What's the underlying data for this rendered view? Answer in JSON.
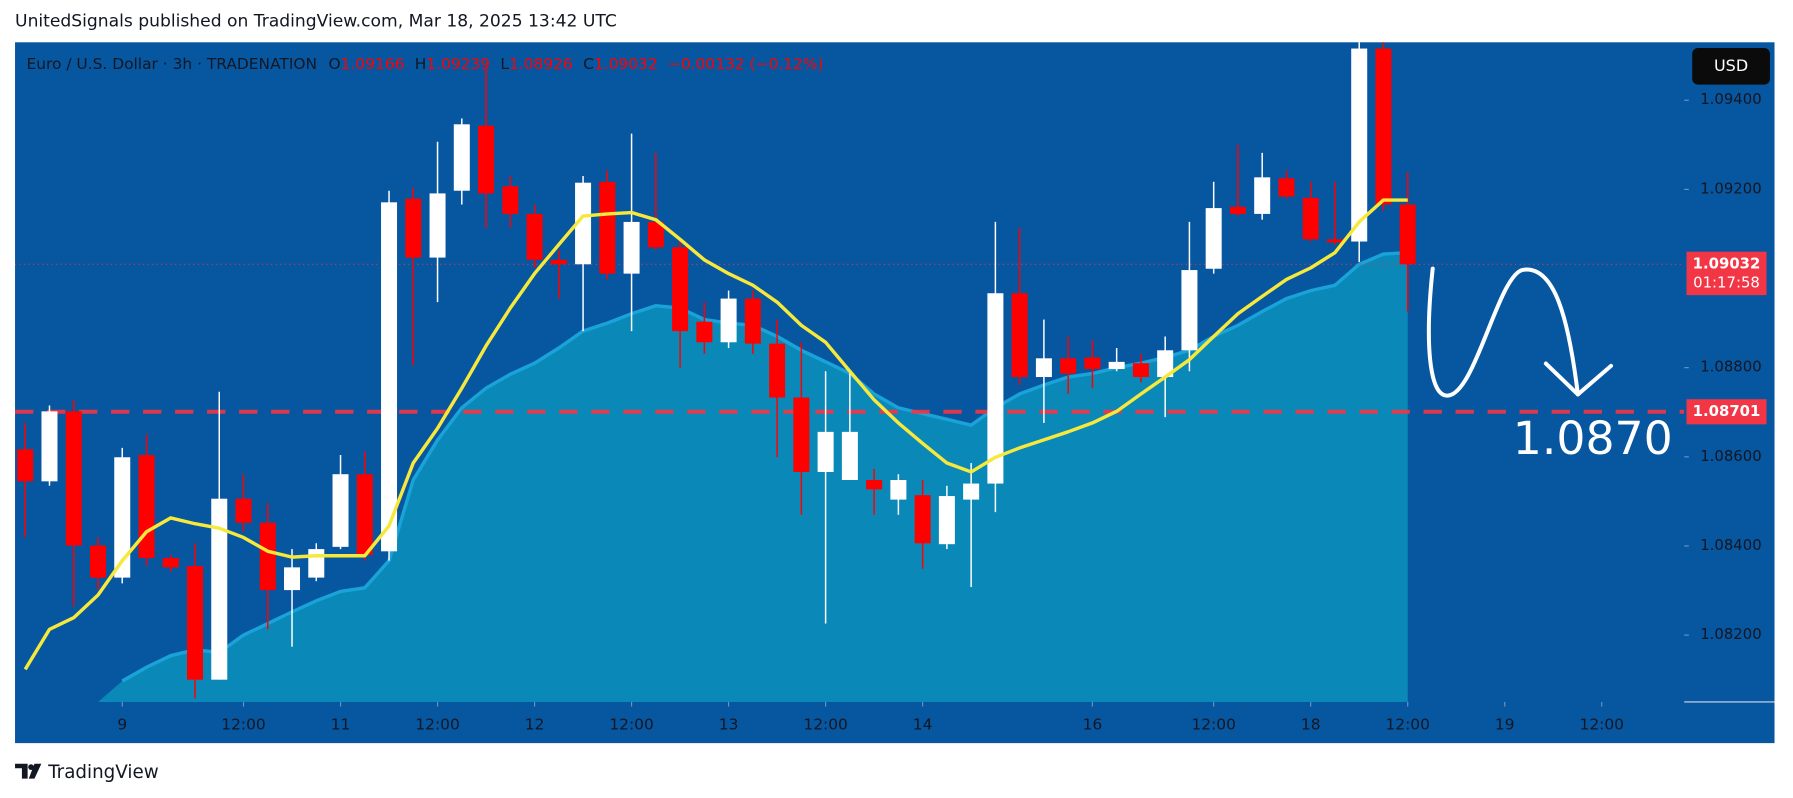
{
  "header": {
    "text": "UnitedSignals published on TradingView.com, Mar 18, 2025 13:42 UTC"
  },
  "footer": {
    "logo": "TradingView"
  },
  "chart_data": {
    "type": "candlestick",
    "legend": {
      "symbol": "Euro / U.S. Dollar · 3h · TRADENATION",
      "open_label": "O",
      "open": "1.09166",
      "high_label": "H",
      "high": "1.09239",
      "low_label": "L",
      "low": "1.08926",
      "close_label": "C",
      "close": "1.09032",
      "change": "−0.00132 (−0.12%)"
    },
    "currency": "USD",
    "xlim": [
      -0.42,
      68.4
    ],
    "xticks": [
      {
        "value": 4,
        "label": "9"
      },
      {
        "value": 9,
        "label": "12:00"
      },
      {
        "value": 13,
        "label": "11"
      },
      {
        "value": 17,
        "label": "12:00"
      },
      {
        "value": 21,
        "label": "12"
      },
      {
        "value": 25,
        "label": "12:00"
      },
      {
        "value": 29,
        "label": "13"
      },
      {
        "value": 33,
        "label": "12:00"
      },
      {
        "value": 37,
        "label": "14"
      },
      {
        "value": 44,
        "label": "16"
      },
      {
        "value": 49,
        "label": "12:00"
      },
      {
        "value": 53,
        "label": "18"
      },
      {
        "value": 57,
        "label": "12:00"
      },
      {
        "value": 61,
        "label": "19"
      },
      {
        "value": 65,
        "label": "12:00"
      }
    ],
    "ylim": [
      1.0805,
      1.0953
    ],
    "yticks": [
      {
        "value": 1.082,
        "label": "1.08200"
      },
      {
        "value": 1.084,
        "label": "1.08400"
      },
      {
        "value": 1.086,
        "label": "1.08600"
      },
      {
        "value": 1.088,
        "label": "1.08800"
      },
      {
        "value": 1.092,
        "label": "1.09200"
      },
      {
        "value": 1.094,
        "label": "1.09400"
      }
    ],
    "up_color": "#ffffff",
    "down_color": "#ff0000",
    "open": [
      1.08617,
      1.08545,
      1.08702,
      1.08401,
      1.08329,
      1.08604,
      1.08373,
      1.08355,
      1.081,
      1.08506,
      1.08452,
      1.08301,
      1.08329,
      1.08398,
      1.08561,
      1.08388,
      1.09179,
      1.09047,
      1.09197,
      1.09343,
      1.09207,
      1.09145,
      1.09042,
      1.09032,
      1.09217,
      1.09011,
      1.09127,
      1.0907,
      1.08903,
      1.08857,
      1.08955,
      1.08854,
      1.08733,
      1.08566,
      1.08548,
      1.08548,
      1.08504,
      1.08514,
      1.08404,
      1.08504,
      1.0854,
      1.08967,
      1.08779,
      1.08821,
      1.08823,
      1.08797,
      1.0881,
      1.08779,
      1.08839,
      1.09022,
      1.09161,
      1.09145,
      1.09225,
      1.09181,
      1.09088,
      1.09083,
      1.09516,
      1.09166
    ],
    "high": [
      1.08676,
      1.08715,
      1.08728,
      1.08419,
      1.0862,
      1.08651,
      1.0838,
      1.08406,
      1.08746,
      1.08561,
      1.08496,
      1.08393,
      1.08406,
      1.08604,
      1.08612,
      1.09197,
      1.09204,
      1.09307,
      1.09359,
      1.09475,
      1.0923,
      1.09166,
      1.09063,
      1.0923,
      1.09243,
      1.09325,
      1.09282,
      1.09088,
      1.08947,
      1.08973,
      1.08973,
      1.08908,
      1.08857,
      1.08792,
      1.08792,
      1.08573,
      1.08561,
      1.08548,
      1.08535,
      1.08586,
      1.09127,
      1.09114,
      1.08908,
      1.0887,
      1.08862,
      1.08844,
      1.08831,
      1.0887,
      1.09127,
      1.09217,
      1.093,
      1.09282,
      1.09243,
      1.09217,
      1.09217,
      1.09534,
      1.09534,
      1.09239
    ],
    "low": [
      1.08419,
      1.08535,
      1.08264,
      1.08303,
      1.08316,
      1.08355,
      1.08342,
      1.08058,
      1.081,
      1.08432,
      1.08213,
      1.08174,
      1.08321,
      1.08393,
      1.08367,
      1.08367,
      1.08805,
      1.08947,
      1.09166,
      1.09114,
      1.09114,
      1.09024,
      1.08955,
      1.08882,
      1.08998,
      1.08882,
      1.09063,
      1.088,
      1.08831,
      1.08844,
      1.08831,
      1.08599,
      1.0847,
      1.08226,
      1.08548,
      1.0847,
      1.0847,
      1.08349,
      1.08393,
      1.08308,
      1.08476,
      1.08761,
      1.08676,
      1.08741,
      1.08754,
      1.08792,
      1.08767,
      1.08689,
      1.08792,
      1.09011,
      1.0914,
      1.09132,
      1.09179,
      1.09083,
      1.09076,
      1.09037,
      1.09153,
      1.08926
    ],
    "close": [
      1.08545,
      1.08702,
      1.08401,
      1.08329,
      1.08599,
      1.08373,
      1.08352,
      1.081,
      1.08506,
      1.08452,
      1.08301,
      1.08352,
      1.08393,
      1.08561,
      1.0838,
      1.09171,
      1.09047,
      1.09191,
      1.09346,
      1.09191,
      1.09145,
      1.09042,
      1.09032,
      1.09215,
      1.09011,
      1.09127,
      1.0907,
      1.08882,
      1.08857,
      1.08955,
      1.08854,
      1.08733,
      1.08566,
      1.08656,
      1.08656,
      1.08527,
      1.08548,
      1.08406,
      1.08512,
      1.0854,
      1.08967,
      1.08779,
      1.08821,
      1.08787,
      1.08797,
      1.08813,
      1.08779,
      1.08839,
      1.09019,
      1.09158,
      1.09145,
      1.09227,
      1.09184,
      1.09088,
      1.09081,
      1.09516,
      1.09166,
      1.09032
    ],
    "ma_line": {
      "color": "#f7e83c",
      "values": [
        1.08123,
        1.08213,
        1.08239,
        1.0829,
        1.08367,
        1.08432,
        1.08463,
        1.0845,
        1.0844,
        1.08419,
        1.08388,
        1.08375,
        1.08378,
        1.08378,
        1.08378,
        1.08445,
        1.08586,
        1.08664,
        1.08754,
        1.08849,
        1.08934,
        1.09011,
        1.09076,
        1.0914,
        1.09145,
        1.09148,
        1.09132,
        1.09088,
        1.09042,
        1.09011,
        1.08985,
        1.08947,
        1.08895,
        1.08857,
        1.08792,
        1.08728,
        1.08676,
        1.0863,
        1.08586,
        1.08566,
        1.08599,
        1.0862,
        1.08638,
        1.08656,
        1.08676,
        1.08702,
        1.08741,
        1.08779,
        1.08818,
        1.0887,
        1.08921,
        1.0896,
        1.08998,
        1.09024,
        1.09058,
        1.09127,
        1.09176,
        1.09176
      ]
    },
    "ma_area": {
      "color": "#0a88b8",
      "edge_color": "#1aa3d9",
      "values": [
        null,
        null,
        null,
        null,
        1.08097,
        1.08128,
        1.08154,
        1.08167,
        1.08161,
        1.082,
        1.08226,
        1.08252,
        1.08277,
        1.08298,
        1.08306,
        1.08367,
        1.08548,
        1.08638,
        1.0871,
        1.08754,
        1.08785,
        1.0881,
        1.08844,
        1.08882,
        1.089,
        1.08921,
        1.08939,
        1.08934,
        1.08908,
        1.089,
        1.08895,
        1.0887,
        1.08839,
        1.08813,
        1.08787,
        1.08741,
        1.0871,
        1.08697,
        1.08684,
        1.08671,
        1.0871,
        1.08741,
        1.08761,
        1.08779,
        1.08787,
        1.088,
        1.0881,
        1.08823,
        1.08839,
        1.0887,
        1.08895,
        1.08926,
        1.08955,
        1.08973,
        1.08985,
        1.09032,
        1.09055,
        1.09058
      ]
    },
    "price_lines": [
      {
        "value": 1.09032,
        "label": "1.09032",
        "countdown": "01:17:58",
        "style": "dotted",
        "color": "#f23645"
      },
      {
        "value": 1.08701,
        "label": "1.08701",
        "style": "dashed",
        "color": "#f23645"
      }
    ],
    "annotation": {
      "text": "1.0870"
    }
  }
}
